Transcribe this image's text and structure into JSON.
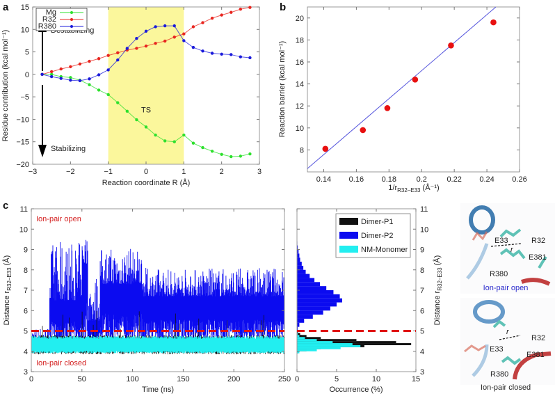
{
  "panels": {
    "a": {
      "letter": "a"
    },
    "b": {
      "letter": "b"
    },
    "c": {
      "letter": "c"
    }
  },
  "chart_data": [
    {
      "id": "a",
      "type": "line",
      "title": "",
      "xlabel": "Reaction coordinate R (Å)",
      "ylabel": "Residue contribution (kcal mol⁻¹)",
      "xlim": [
        -3,
        3
      ],
      "ylim": [
        -20,
        15
      ],
      "xticks": [
        -3,
        -2,
        -1,
        0,
        1,
        2,
        3
      ],
      "xtick_labels": [
        "−3",
        "−2",
        "−1",
        "0",
        "1",
        "2",
        "3"
      ],
      "yticks": [
        -20,
        -15,
        -10,
        -5,
        0,
        5,
        10,
        15
      ],
      "ytick_labels": [
        "−20",
        "−15",
        "−10",
        "−5",
        "0",
        "5",
        "10",
        "15"
      ],
      "legend": {
        "placement": "top-left"
      },
      "shaded_region": {
        "x": [
          -1,
          1
        ],
        "label": "TS",
        "color": "#fbf79c"
      },
      "annotations": [
        {
          "text": "Destabilizing",
          "direction": "up"
        },
        {
          "text": "Stabilizing",
          "direction": "down"
        }
      ],
      "x": [
        -2.75,
        -2.5,
        -2.25,
        -2.0,
        -1.75,
        -1.5,
        -1.25,
        -1.0,
        -0.75,
        -0.5,
        -0.25,
        0.0,
        0.25,
        0.5,
        0.75,
        1.0,
        1.25,
        1.5,
        1.75,
        2.0,
        2.25,
        2.5,
        2.75
      ],
      "series": [
        {
          "name": "Mg",
          "color": "#2ee02e",
          "values": [
            0,
            0,
            -0.5,
            -0.7,
            -1.3,
            -2.3,
            -3.5,
            -4.5,
            -6.3,
            -8.2,
            -10.1,
            -11.7,
            -13.5,
            -14.8,
            -15.0,
            -13.5,
            -15.3,
            -16.3,
            -17.1,
            -17.8,
            -18.3,
            -18.2,
            -17.7
          ]
        },
        {
          "name": "R32",
          "color": "#e8251f",
          "values": [
            0,
            0.6,
            1.2,
            1.7,
            2.3,
            2.9,
            3.5,
            4.2,
            4.8,
            5.4,
            5.8,
            6.3,
            6.9,
            7.4,
            8.3,
            9.0,
            10.6,
            11.5,
            12.5,
            13.2,
            13.8,
            14.5,
            14.9
          ]
        },
        {
          "name": "R380",
          "color": "#1a1adb",
          "values": [
            0,
            -0.5,
            -0.9,
            -1.3,
            -1.4,
            -1.0,
            -0.1,
            1.0,
            3.2,
            5.8,
            8.0,
            9.6,
            10.6,
            10.8,
            10.8,
            7.5,
            6.0,
            5.2,
            4.7,
            4.5,
            4.4,
            3.9,
            3.7
          ]
        }
      ]
    },
    {
      "id": "b",
      "type": "scatter",
      "title": "",
      "xlabel": "1/r",
      "xlabel_sub": "R32–E33",
      "xlabel_unit": " (Å⁻¹)",
      "ylabel": "Reaction barrier (kcal mol⁻¹)",
      "xlim": [
        0.13,
        0.26
      ],
      "ylim": [
        6,
        21
      ],
      "xticks": [
        0.14,
        0.16,
        0.18,
        0.2,
        0.22,
        0.24,
        0.26
      ],
      "xtick_labels": [
        "0.14",
        "0.16",
        "0.18",
        "0.2",
        "0.22",
        "0.24",
        "0.26"
      ],
      "yticks": [
        8,
        10,
        12,
        14,
        16,
        18,
        20
      ],
      "ytick_labels": [
        "8",
        "10",
        "12",
        "14",
        "16",
        "18",
        "20"
      ],
      "points": {
        "color": "#e81010",
        "x": [
          0.141,
          0.164,
          0.179,
          0.196,
          0.218,
          0.244
        ],
        "y": [
          8.1,
          9.8,
          11.8,
          14.4,
          17.5,
          19.6
        ]
      },
      "fit_line": {
        "color": "#5555dd",
        "x": [
          0.13,
          0.2455
        ],
        "y": [
          6.3,
          21.0
        ]
      }
    },
    {
      "id": "c-timeseries",
      "type": "line",
      "title": "",
      "xlabel": "Time (ns)",
      "ylabel": "Distance r",
      "ylabel_sub": "R32–E33",
      "ylabel_unit": " (Å)",
      "xlim": [
        0,
        250
      ],
      "ylim": [
        3,
        11
      ],
      "xticks": [
        0,
        50,
        100,
        150,
        200,
        250
      ],
      "xtick_labels": [
        "0",
        "50",
        "100",
        "150",
        "200",
        "250"
      ],
      "yticks": [
        3,
        4,
        5,
        6,
        7,
        8,
        9,
        10,
        11
      ],
      "ytick_labels": [
        "3",
        "4",
        "5",
        "6",
        "7",
        "8",
        "9",
        "10",
        "11"
      ],
      "threshold": {
        "y": 5,
        "color": "#e01414",
        "style": "dashed"
      },
      "annotations": [
        {
          "text": "Ion-pair open",
          "color": "#d42020"
        },
        {
          "text": "Ion-pair closed",
          "color": "#d42020"
        }
      ],
      "series": [
        {
          "name": "Dimer-P1",
          "color": "#111111",
          "mean": 4.35,
          "range": [
            3.7,
            6.0
          ]
        },
        {
          "name": "Dimer-P2",
          "color": "#0b0bf0",
          "segments": [
            {
              "t": [
                0,
                18
              ],
              "mean": 4.5,
              "max": 5.2
            },
            {
              "t": [
                18,
                48
              ],
              "mean": 6.5,
              "max": 9.4
            },
            {
              "t": [
                50,
                56
              ],
              "mean": 8.3,
              "max": 9.7
            },
            {
              "t": [
                56,
                68
              ],
              "mean": 5.5,
              "max": 7.8
            },
            {
              "t": [
                68,
                110
              ],
              "mean": 7.3,
              "max": 9.1
            },
            {
              "t": [
                110,
                250
              ],
              "mean": 6.7,
              "max": 8.1
            }
          ]
        },
        {
          "name": "NM-Monomer",
          "color": "#22eef0",
          "mean": 4.3,
          "range": [
            3.9,
            4.75
          ]
        }
      ]
    },
    {
      "id": "c-histogram",
      "type": "bar",
      "orientation": "horizontal",
      "title": "",
      "xlabel": "Occurrence (%)",
      "ylabel": "Distance r",
      "ylabel_sub": "R32–E33",
      "ylabel_unit": " (Å)",
      "xlim": [
        0,
        15
      ],
      "ylim": [
        3,
        11
      ],
      "xticks": [
        0,
        5,
        10,
        15
      ],
      "xtick_labels": [
        "0",
        "5",
        "10",
        "15"
      ],
      "yticks": [
        3,
        4,
        5,
        6,
        7,
        8,
        9,
        10,
        11
      ],
      "ytick_labels": [
        "3",
        "4",
        "5",
        "6",
        "7",
        "8",
        "9",
        "10",
        "11"
      ],
      "legend": {
        "placement": "top-right"
      },
      "threshold": {
        "y": 5,
        "color": "#e01414",
        "style": "dashed"
      },
      "distance_bins": [
        3.9,
        4.0,
        4.1,
        4.2,
        4.3,
        4.4,
        4.5,
        4.6,
        4.7,
        4.8,
        4.9,
        5.0,
        5.2,
        5.4,
        5.6,
        5.8,
        6.0,
        6.2,
        6.4,
        6.6,
        6.8,
        7.0,
        7.2,
        7.4,
        7.6,
        7.8,
        8.0,
        8.2,
        8.4,
        8.6,
        8.8,
        9.0,
        9.2
      ],
      "series": [
        {
          "name": "Dimer-P1",
          "color": "#111111",
          "values": [
            0.1,
            1.2,
            3.0,
            8.5,
            14.4,
            12.5,
            7.5,
            3.0,
            1.2,
            0.4,
            0.1,
            0,
            0,
            0,
            0,
            0,
            0,
            0,
            0,
            0,
            0,
            0,
            0,
            0,
            0,
            0,
            0,
            0,
            0,
            0,
            0,
            0,
            0
          ]
        },
        {
          "name": "Dimer-P2",
          "color": "#0b0bf0",
          "values": [
            0,
            0,
            0.1,
            0.3,
            0.5,
            1.0,
            1.8,
            1.3,
            0.6,
            0.2,
            0.1,
            0.1,
            0.3,
            0.9,
            2.0,
            3.3,
            4.2,
            5.0,
            5.7,
            5.4,
            4.6,
            3.7,
            2.9,
            2.2,
            1.6,
            1.1,
            0.8,
            0.6,
            0.4,
            0.3,
            0.2,
            0.1,
            0.05
          ]
        },
        {
          "name": "NM-Monomer",
          "color": "#22eef0",
          "values": [
            0.3,
            2.5,
            5.5,
            8.0,
            7.0,
            4.5,
            2.5,
            1.0,
            0.3,
            0.1,
            0,
            0,
            0,
            0,
            0,
            0,
            0,
            0,
            0,
            0,
            0,
            0,
            0,
            0,
            0,
            0,
            0,
            0,
            0,
            0,
            0,
            0,
            0
          ]
        }
      ]
    }
  ],
  "structures": {
    "top": {
      "labels": [
        "E33",
        "R32",
        "r",
        "E381",
        "R380"
      ],
      "caption": "Ion-pair open",
      "caption_color": "#2c2ccc"
    },
    "bottom": {
      "labels": [
        "E33",
        "R32",
        "r",
        "E381",
        "R380"
      ],
      "caption": "Ion-pair closed",
      "caption_color": "#222222"
    }
  }
}
